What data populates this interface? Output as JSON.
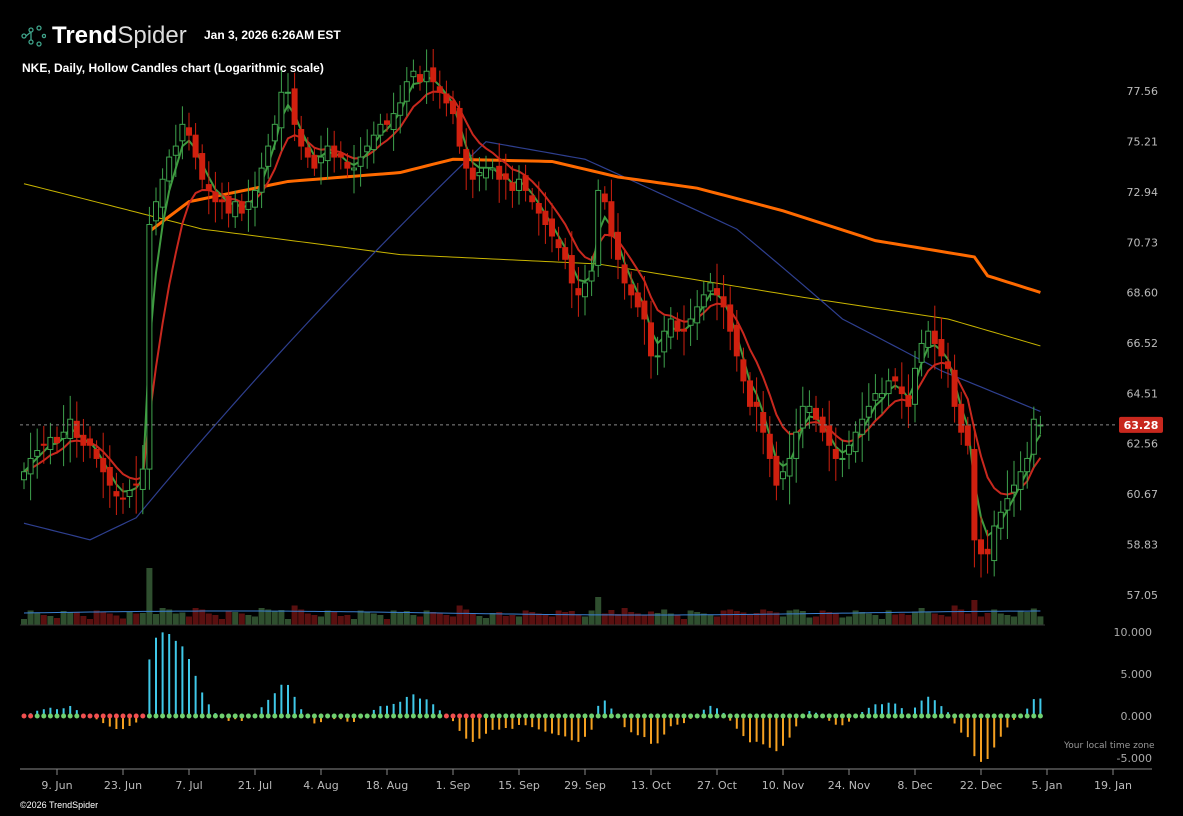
{
  "header": {
    "brand_bold": "Trend",
    "brand_light": "Spider",
    "timestamp": "Jan 3, 2026 6:26AM EST",
    "chart_title": "NKE, Daily, Hollow Candles chart (Logarithmic scale)"
  },
  "footer": {
    "copyright": "©2026 TrendSpider",
    "timezone_note": "Your local time zone"
  },
  "colors": {
    "up": "#3fa34d",
    "down": "#d0200f",
    "fast_ma": "#3f9b3f",
    "slow_ma": "#c8281e",
    "ma_blue": "#2e3f8f",
    "ma_yellow": "#c8b400",
    "ma_orange": "#ff6a00",
    "osc_pos": "#3fc8e8",
    "osc_neg": "#f5a020",
    "price_label_bg": "#c8281e"
  },
  "chart_data": {
    "type": "candlestick",
    "symbol": "NKE",
    "scale": "log",
    "ylim": [
      56.5,
      78.5
    ],
    "y_ticks": [
      77.56,
      75.21,
      72.94,
      70.73,
      68.6,
      66.52,
      64.51,
      62.56,
      60.67,
      58.83,
      57.05
    ],
    "last_price": 63.28,
    "last_price_label": "63.28",
    "x_ticks": [
      {
        "label": "9. Jun",
        "index": 5
      },
      {
        "label": "23. Jun",
        "index": 15
      },
      {
        "label": "7. Jul",
        "index": 25
      },
      {
        "label": "21. Jul",
        "index": 35
      },
      {
        "label": "4. Aug",
        "index": 45
      },
      {
        "label": "18. Aug",
        "index": 55
      },
      {
        "label": "1. Sep",
        "index": 65
      },
      {
        "label": "15. Sep",
        "index": 75
      },
      {
        "label": "29. Sep",
        "index": 85
      },
      {
        "label": "13. Oct",
        "index": 95
      },
      {
        "label": "27. Oct",
        "index": 105
      },
      {
        "label": "10. Nov",
        "index": 115
      },
      {
        "label": "24. Nov",
        "index": 125
      },
      {
        "label": "8. Dec",
        "index": 135
      },
      {
        "label": "22. Dec",
        "index": 145
      },
      {
        "label": "5. Jan",
        "index": 155
      },
      {
        "label": "19. Jan",
        "index": 165
      }
    ],
    "closes": [
      61.5,
      62,
      62.3,
      62.5,
      62.8,
      62.6,
      63,
      63.5,
      62.8,
      62.5,
      62.5,
      62,
      61.5,
      61,
      60.6,
      60.5,
      60.8,
      61,
      61.6,
      71.5,
      72.5,
      73.5,
      74.5,
      75,
      76,
      75.5,
      74.5,
      73.5,
      73,
      72.5,
      72.5,
      72,
      72.5,
      72,
      72.5,
      73,
      74,
      75,
      76,
      77.5,
      77.5,
      76,
      75,
      74.5,
      74,
      74.5,
      75,
      74.5,
      74.5,
      74,
      74,
      74.5,
      75,
      75.5,
      76,
      76,
      76.5,
      77,
      78,
      78.5,
      78,
      78.5,
      78,
      77.5,
      77,
      76.5,
      75,
      74,
      73.5,
      73.8,
      74,
      74,
      73.5,
      73.5,
      73,
      73.5,
      73,
      72.5,
      72,
      71.5,
      71,
      70.5,
      70,
      69,
      68.5,
      69,
      69.5,
      73,
      72.5,
      71,
      70,
      69,
      68.5,
      68,
      67.5,
      66,
      66,
      67,
      67.5,
      67,
      67,
      67.5,
      68,
      68.5,
      69,
      68.5,
      68,
      67,
      66,
      65,
      64,
      64,
      63,
      62,
      61,
      61.5,
      62,
      63,
      64,
      64,
      63.5,
      63,
      62.5,
      62,
      62,
      62.5,
      63,
      63.5,
      64,
      64.5,
      64.5,
      65,
      65,
      64.5,
      64,
      65.5,
      66.5,
      67,
      66.5,
      66,
      65.5,
      64,
      63,
      62.5,
      59,
      58.5,
      58.5,
      59.5,
      60,
      60.5,
      61,
      61.5,
      62,
      63.5,
      63.28
    ],
    "ma_blue": [
      [
        0,
        59.6
      ],
      [
        10,
        59.0
      ],
      [
        17,
        59.8
      ],
      [
        70,
        75.2
      ],
      [
        85,
        74.4
      ],
      [
        108,
        71.3
      ],
      [
        124,
        67.5
      ],
      [
        139,
        65.4
      ],
      [
        154,
        63.8
      ]
    ],
    "ma_yellow": [
      [
        0,
        73.3
      ],
      [
        27,
        71.3
      ],
      [
        57,
        70.2
      ],
      [
        87,
        69.8
      ],
      [
        118,
        68.4
      ],
      [
        140,
        67.5
      ],
      [
        154,
        66.4
      ]
    ],
    "ma_orange": [
      [
        19,
        71.2
      ],
      [
        25,
        72.5
      ],
      [
        40,
        73.4
      ],
      [
        57,
        73.8
      ],
      [
        65,
        74.4
      ],
      [
        80,
        74.3
      ],
      [
        90,
        73.6
      ],
      [
        102,
        73.1
      ],
      [
        115,
        72.1
      ],
      [
        129,
        70.8
      ],
      [
        144,
        70.1
      ],
      [
        146,
        69.3
      ],
      [
        154,
        68.6
      ]
    ],
    "oscillator": {
      "y_ticks": [
        "10.000",
        "5.000",
        "0.000",
        "-5.000"
      ],
      "ylim": [
        -5,
        10
      ]
    }
  }
}
